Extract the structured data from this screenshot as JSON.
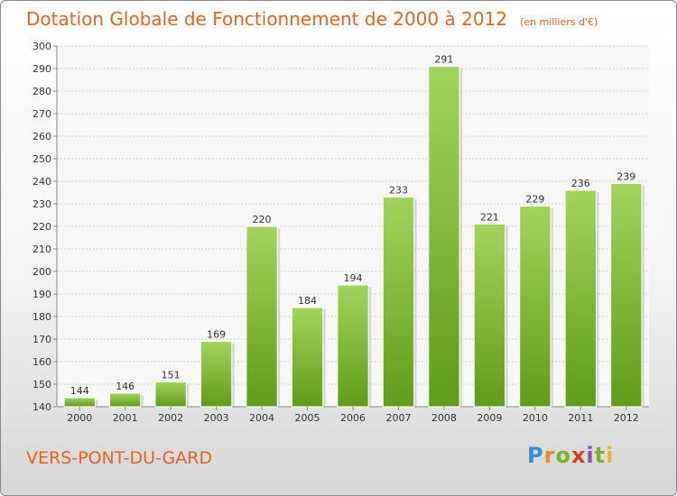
{
  "title": "Dotation Globale de Fonctionnement de 2000 à 2012",
  "subtitle": "(en milliers d'€)",
  "commune": "VERS-PONT-DU-GARD",
  "logo": {
    "letters": [
      "P",
      "r",
      "o",
      "x",
      "i",
      "t",
      "i"
    ]
  },
  "colors": {
    "accent": "#e0651f",
    "bar_top": "#a3d45c",
    "bar_bottom": "#5f9c18"
  },
  "chart_data": {
    "type": "bar",
    "title": "Dotation Globale de Fonctionnement de 2000 à 2012",
    "subtitle": "(en milliers d'€)",
    "categories": [
      "2000",
      "2001",
      "2002",
      "2003",
      "2004",
      "2005",
      "2006",
      "2007",
      "2008",
      "2009",
      "2010",
      "2011",
      "2012"
    ],
    "values": [
      144,
      146,
      151,
      169,
      220,
      184,
      194,
      233,
      291,
      221,
      229,
      236,
      239
    ],
    "ylim": [
      140,
      300
    ],
    "yticks": [
      140,
      150,
      160,
      170,
      180,
      190,
      200,
      210,
      220,
      230,
      240,
      250,
      260,
      270,
      280,
      290,
      300
    ],
    "grid": true,
    "xlabel": "",
    "ylabel": ""
  }
}
